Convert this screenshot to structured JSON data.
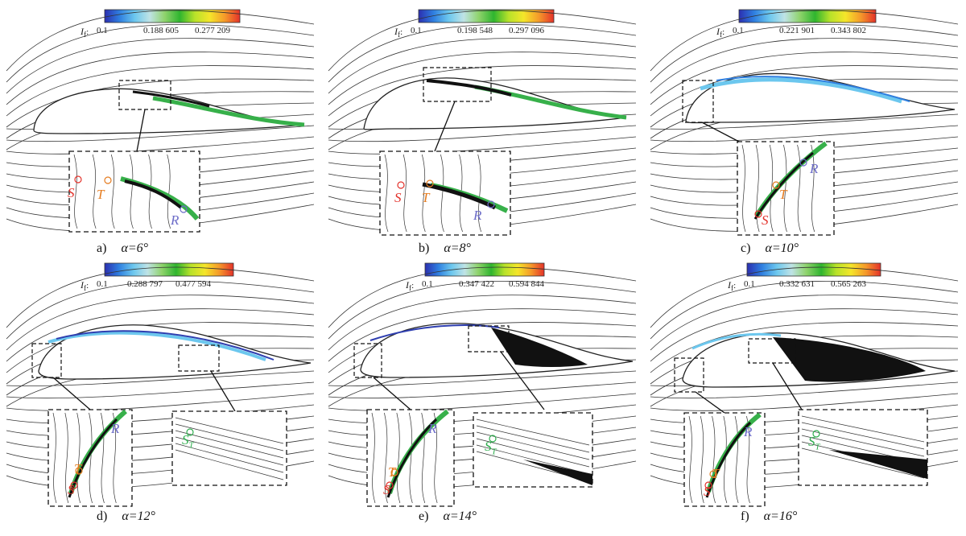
{
  "colorbar": {
    "variable": "I",
    "subscript": "f",
    "sep": ":",
    "stops": [
      "#2b2fb0",
      "#2f7fe0",
      "#6cc7ee",
      "#bfe3e6",
      "#8fd36c",
      "#2fb52f",
      "#b8e22a",
      "#f5e62a",
      "#f59a2a",
      "#e4322a"
    ]
  },
  "marker_colors": {
    "S": "#e3322b",
    "T": "#e57b1e",
    "R": "#6c6cc8",
    "ST": "#2fae4e"
  },
  "panels": [
    {
      "id": "a",
      "caption_letter": "a)",
      "caption_alpha": "α=6°",
      "ticks": [
        "0.1",
        "0.188 605",
        "0.277 209"
      ]
    },
    {
      "id": "b",
      "caption_letter": "b)",
      "caption_alpha": "α=8°",
      "ticks": [
        "0.1",
        "0.198 548",
        "0.297 096"
      ]
    },
    {
      "id": "c",
      "caption_letter": "c)",
      "caption_alpha": "α=10°",
      "ticks": [
        "0.1",
        "0.221 901",
        "0.343 802"
      ]
    },
    {
      "id": "d",
      "caption_letter": "d)",
      "caption_alpha": "α=12°",
      "ticks": [
        "0.1",
        "0.288 797",
        "0.477 594"
      ]
    },
    {
      "id": "e",
      "caption_letter": "e)",
      "caption_alpha": "α=14°",
      "ticks": [
        "0.1",
        "0.347 422",
        "0.594 844"
      ]
    },
    {
      "id": "f",
      "caption_letter": "f)",
      "caption_alpha": "α=16°",
      "ticks": [
        "0.1",
        "0.332 631",
        "0.565 263"
      ]
    }
  ],
  "markers": {
    "S": "S",
    "T": "T",
    "R": "R",
    "ST_main": "S",
    "ST_sub": "T"
  }
}
